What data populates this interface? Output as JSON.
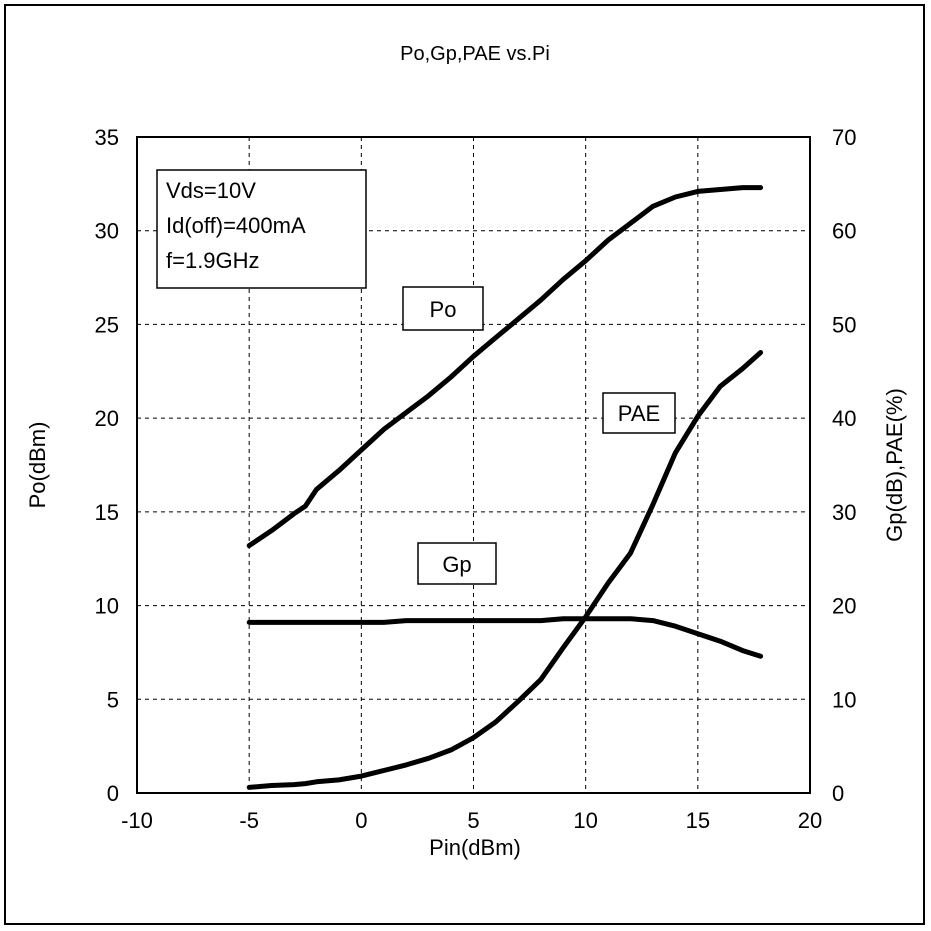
{
  "chart_data": {
    "type": "line",
    "title": "Po,Gp,PAE vs.Pi",
    "xlabel": "Pin(dBm)",
    "ylabel": "Po(dBm)",
    "y2label": "Gp(dB),PAE(%)",
    "xlim": [
      -10,
      20
    ],
    "ylim": [
      0,
      35
    ],
    "y2lim": [
      0,
      70
    ],
    "x_ticks": [
      -10,
      -5,
      0,
      5,
      10,
      15,
      20
    ],
    "y_ticks": [
      0,
      5,
      10,
      15,
      20,
      25,
      30,
      35
    ],
    "y2_ticks": [
      0,
      10,
      20,
      30,
      40,
      50,
      60,
      70
    ],
    "grid": true,
    "conditions": [
      "Vds=10V",
      "Id(off)=400mA",
      "f=1.9GHz"
    ],
    "series": [
      {
        "name": "Po",
        "axis": "left",
        "x": [
          -5,
          -4,
          -3,
          -2.5,
          -2,
          -1,
          0,
          1,
          2,
          3,
          4,
          5,
          6,
          7,
          8,
          9,
          10,
          11,
          12,
          13,
          14,
          15,
          16,
          17,
          17.8
        ],
        "y": [
          13.2,
          14.0,
          14.9,
          15.3,
          16.2,
          17.2,
          18.3,
          19.4,
          20.3,
          21.2,
          22.2,
          23.3,
          24.3,
          25.3,
          26.3,
          27.4,
          28.4,
          29.5,
          30.4,
          31.3,
          31.8,
          32.1,
          32.2,
          32.3,
          32.3
        ]
      },
      {
        "name": "Gp",
        "axis": "right",
        "x": [
          -5,
          -2,
          1,
          2,
          3,
          4,
          5,
          6,
          7,
          8,
          9,
          10,
          11,
          12,
          13,
          14,
          15,
          16,
          17,
          17.8
        ],
        "y": [
          18.2,
          18.2,
          18.2,
          18.4,
          18.4,
          18.4,
          18.4,
          18.4,
          18.4,
          18.4,
          18.6,
          18.6,
          18.6,
          18.6,
          18.4,
          17.8,
          17.0,
          16.2,
          15.2,
          14.6
        ]
      },
      {
        "name": "PAE",
        "axis": "right",
        "x": [
          -5,
          -4,
          -3,
          -2.5,
          -2,
          -1,
          0,
          1,
          2,
          3,
          4,
          5,
          6,
          7,
          8,
          9,
          10,
          11,
          12,
          13,
          14,
          15,
          16,
          17,
          17.8
        ],
        "y": [
          0.6,
          0.8,
          0.9,
          1.0,
          1.2,
          1.4,
          1.8,
          2.4,
          3.0,
          3.7,
          4.6,
          5.9,
          7.6,
          9.8,
          12.1,
          15.5,
          18.8,
          22.4,
          25.6,
          30.8,
          36.3,
          40.2,
          43.4,
          45.3,
          47.0
        ]
      }
    ]
  }
}
